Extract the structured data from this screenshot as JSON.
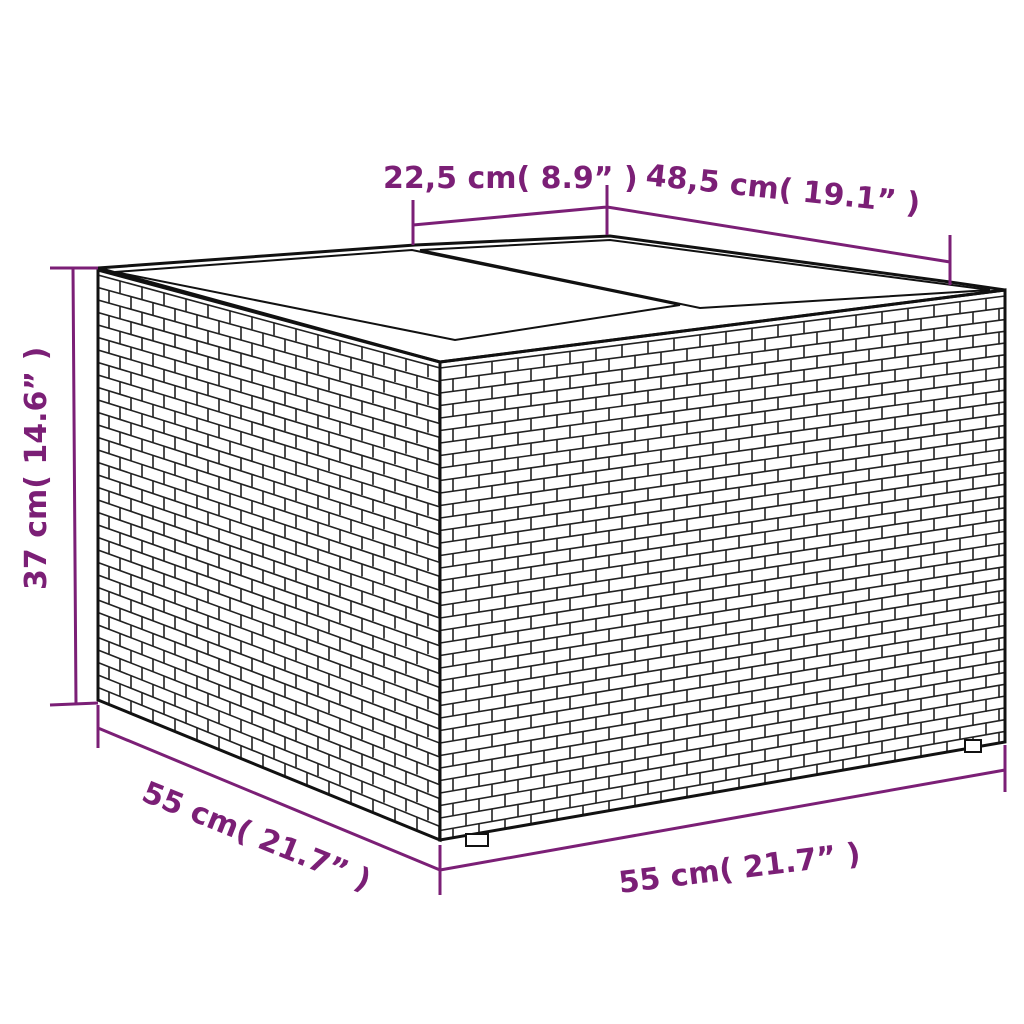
{
  "colors": {
    "dimension": "#7b1f76",
    "product_outline": "#111111"
  },
  "product": "wicker storage box with two lid panels",
  "dimensions": {
    "top_lid_panel": "22,5 cm( 8.9”  )",
    "top_depth": "48,5 cm( 19.1”  )",
    "height": "37 cm( 14.6”  )",
    "left_width": "55 cm( 21.7”  )",
    "front_width": "55 cm( 21.7”  )"
  }
}
